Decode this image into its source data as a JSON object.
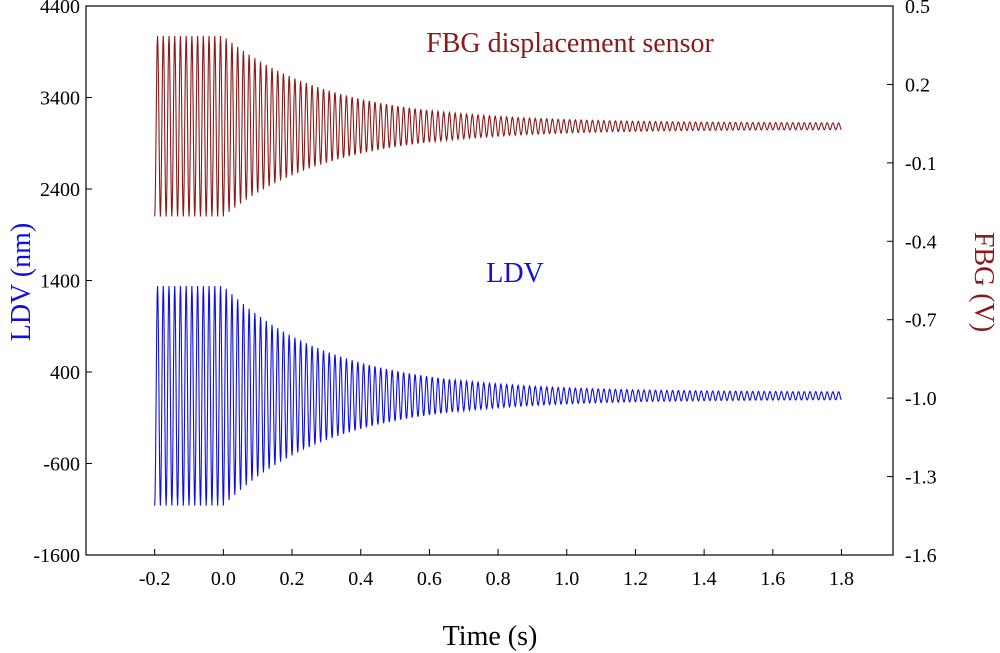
{
  "chart_data": {
    "type": "line",
    "title": "",
    "xlabel": "Time (s)",
    "ylabel_left": "LDV (nm)",
    "ylabel_right": "FBG (V)",
    "xlim": [
      -0.4,
      1.95
    ],
    "ylim_left": [
      -1600,
      4400
    ],
    "ylim_right": [
      -1.6,
      0.5
    ],
    "x_ticks": [
      -0.2,
      0.0,
      0.2,
      0.4,
      0.6,
      0.8,
      1.0,
      1.2,
      1.4,
      1.6,
      1.8
    ],
    "x_tick_labels": [
      "-0.2",
      "0.0",
      "0.2",
      "0.4",
      "0.6",
      "0.8",
      "1.0",
      "1.2",
      "1.4",
      "1.6",
      "1.8"
    ],
    "y_left_ticks": [
      -1600,
      -600,
      400,
      1400,
      2400,
      3400,
      4400
    ],
    "y_left_tick_labels": [
      "-1600",
      "-600",
      "400",
      "1400",
      "2400",
      "3400",
      "4400"
    ],
    "y_right_ticks": [
      -1.6,
      -1.3,
      -1.0,
      -0.7,
      -0.4,
      -0.1,
      0.2,
      0.5
    ],
    "y_right_tick_labels": [
      "-1.6",
      "-1.3",
      "-1.0",
      "-0.7",
      "-0.4",
      "-0.1",
      "0.2",
      "0.5"
    ],
    "grid": false,
    "series": [
      {
        "name": "FBG displacement sensor",
        "axis": "right",
        "color": "#8b1a1a",
        "label_position": "top-center",
        "t_start": -0.2,
        "t_decay_start": 0.0,
        "t_end": 1.8,
        "frequency_hz": 60,
        "center": 0.04,
        "initial_amplitude": 0.345,
        "final_amplitude": 0.012,
        "decay_rate": 3.2
      },
      {
        "name": "LDV",
        "axis": "left",
        "color": "#1010e0",
        "label_position": "middle-center",
        "t_start": -0.2,
        "t_decay_start": 0.0,
        "t_end": 1.8,
        "frequency_hz": 60,
        "center": 140,
        "initial_amplitude": 1200,
        "final_amplitude": 40,
        "decay_rate": 3.2
      }
    ]
  }
}
